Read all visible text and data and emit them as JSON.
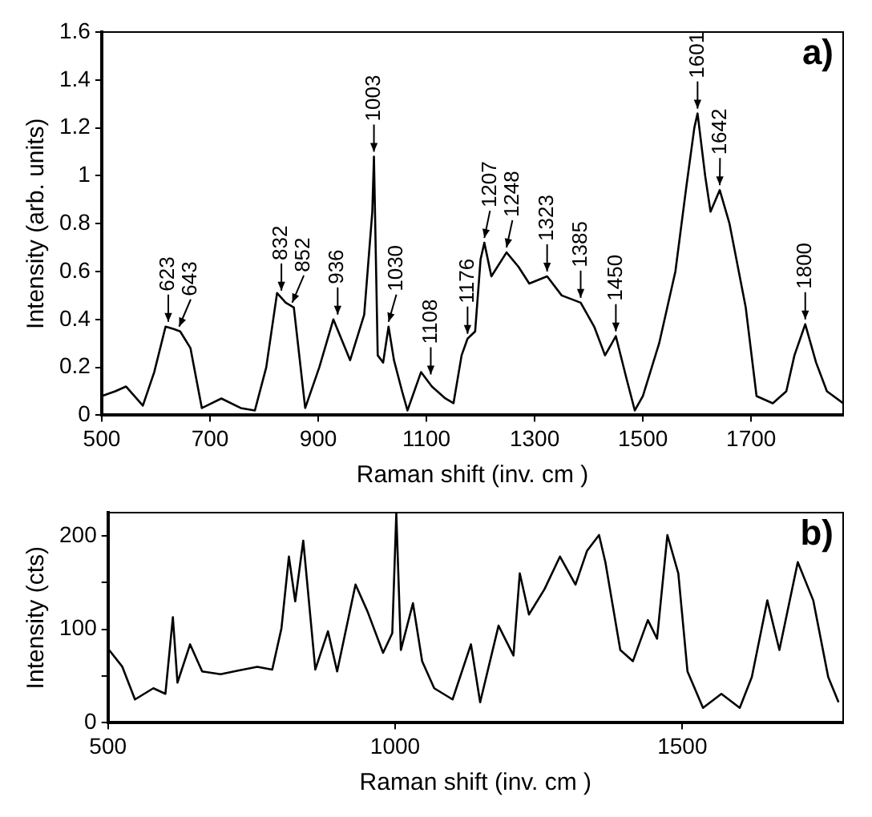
{
  "chart_data": [
    {
      "type": "line",
      "xlabel": "Raman shift (inv. cm )",
      "ylabel": "Intensity (arb. units)",
      "color": "#000000",
      "x": [
        500,
        525,
        545,
        576,
        597,
        618,
        633,
        645,
        664,
        685,
        721,
        757,
        783,
        804,
        824,
        840,
        855,
        876,
        902,
        928,
        959,
        985,
        1000,
        1003,
        1010,
        1020,
        1030,
        1040,
        1055,
        1065,
        1090,
        1110,
        1135,
        1150,
        1165,
        1176,
        1190,
        1200,
        1207,
        1220,
        1248,
        1270,
        1290,
        1323,
        1350,
        1385,
        1410,
        1430,
        1450,
        1470,
        1485,
        1500,
        1530,
        1560,
        1580,
        1595,
        1601,
        1615,
        1625,
        1642,
        1660,
        1690,
        1710,
        1740,
        1765,
        1780,
        1800,
        1820,
        1840,
        1870
      ],
      "values": [
        0.08,
        0.1,
        0.12,
        0.04,
        0.18,
        0.37,
        0.36,
        0.35,
        0.28,
        0.03,
        0.07,
        0.03,
        0.02,
        0.2,
        0.51,
        0.47,
        0.45,
        0.03,
        0.2,
        0.4,
        0.23,
        0.42,
        0.85,
        1.08,
        0.25,
        0.22,
        0.37,
        0.23,
        0.1,
        0.02,
        0.18,
        0.12,
        0.07,
        0.05,
        0.25,
        0.32,
        0.35,
        0.65,
        0.72,
        0.58,
        0.68,
        0.62,
        0.55,
        0.58,
        0.5,
        0.47,
        0.37,
        0.25,
        0.33,
        0.15,
        0.02,
        0.08,
        0.3,
        0.6,
        0.95,
        1.2,
        1.26,
        1.0,
        0.85,
        0.94,
        0.8,
        0.45,
        0.08,
        0.05,
        0.1,
        0.25,
        0.38,
        0.22,
        0.1,
        0.05
      ],
      "xlim": [
        500,
        1870
      ],
      "xticks": [
        500,
        700,
        900,
        1100,
        1300,
        1500,
        1700
      ],
      "ylim": [
        0,
        1.6
      ],
      "yticks": [
        0,
        0.2,
        0.4,
        0.6,
        0.8,
        1,
        1.2,
        1.4,
        1.6
      ],
      "grid": false,
      "legend": false,
      "annotations": [
        "a)",
        {
          "text": "623",
          "x": 623,
          "y": 0.37
        },
        {
          "text": "643",
          "x": 643,
          "y": 0.35
        },
        {
          "text": "832",
          "x": 832,
          "y": 0.5
        },
        {
          "text": "852",
          "x": 852,
          "y": 0.45
        },
        {
          "text": "936",
          "x": 936,
          "y": 0.4
        },
        {
          "text": "1003",
          "x": 1003,
          "y": 1.08
        },
        {
          "text": "1030",
          "x": 1030,
          "y": 0.37
        },
        {
          "text": "1108",
          "x": 1108,
          "y": 0.15
        },
        {
          "text": "1176",
          "x": 1176,
          "y": 0.32
        },
        {
          "text": "1207",
          "x": 1207,
          "y": 0.72
        },
        {
          "text": "1248",
          "x": 1248,
          "y": 0.68
        },
        {
          "text": "1323",
          "x": 1323,
          "y": 0.58
        },
        {
          "text": "1385",
          "x": 1385,
          "y": 0.47
        },
        {
          "text": "1450",
          "x": 1450,
          "y": 0.33
        },
        {
          "text": "1601",
          "x": 1601,
          "y": 1.26
        },
        {
          "text": "1642",
          "x": 1642,
          "y": 0.94
        },
        {
          "text": "1800",
          "x": 1800,
          "y": 0.38
        }
      ]
    },
    {
      "type": "line",
      "xlabel": "Raman shift (inv. cm )",
      "ylabel": "Intensity (cts)",
      "color": "#000000",
      "x": [
        502,
        525,
        547,
        579,
        600,
        613,
        621,
        643,
        664,
        696,
        728,
        760,
        786,
        802,
        815,
        826,
        840,
        861,
        883,
        899,
        931,
        952,
        979,
        995,
        1002,
        1010,
        1031,
        1047,
        1068,
        1100,
        1132,
        1148,
        1180,
        1206,
        1217,
        1233,
        1260,
        1287,
        1314,
        1334,
        1355,
        1366,
        1392,
        1414,
        1440,
        1456,
        1474,
        1493,
        1509,
        1536,
        1568,
        1600,
        1621,
        1648,
        1669,
        1701,
        1728,
        1754,
        1772
      ],
      "values": [
        78,
        60,
        25,
        37,
        31,
        113,
        43,
        84,
        55,
        52,
        56,
        60,
        57,
        101,
        178,
        130,
        195,
        57,
        98,
        55,
        148,
        119,
        75,
        96,
        224,
        78,
        128,
        66,
        37,
        25,
        84,
        22,
        104,
        72,
        160,
        116,
        143,
        178,
        148,
        184,
        201,
        172,
        78,
        66,
        110,
        90,
        201,
        160,
        55,
        16,
        31,
        16,
        49,
        131,
        78,
        172,
        131,
        49,
        22
      ],
      "xlim": [
        500,
        1780
      ],
      "xticks": [
        500,
        1000,
        1500
      ],
      "ylim": [
        0,
        225
      ],
      "yticks": [
        0,
        {
          "value": 50,
          "label": null
        },
        100,
        {
          "value": 150,
          "label": null
        },
        200
      ],
      "grid": false,
      "legend": false,
      "annotations": [
        "b)"
      ]
    }
  ]
}
